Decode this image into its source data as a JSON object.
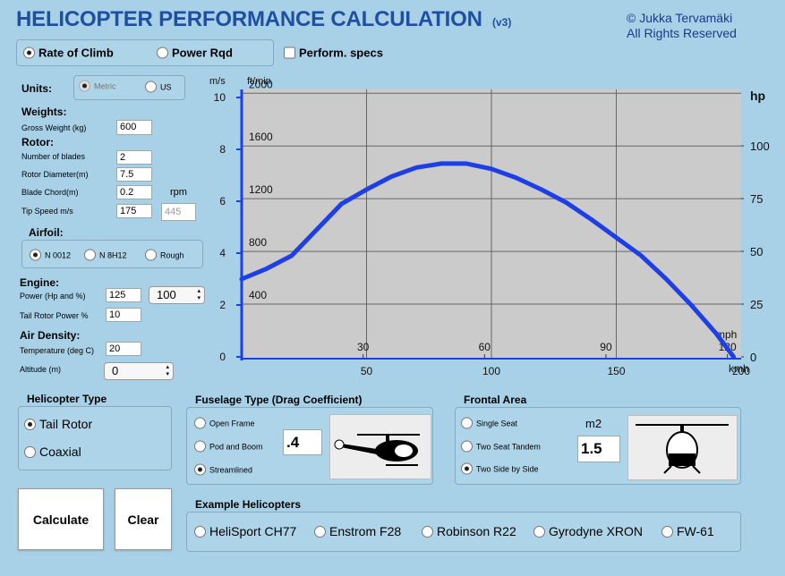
{
  "header": {
    "title": "HELICOPTER PERFORMANCE CALCULATION",
    "version": "(v3)",
    "copyright": [
      "© Jukka Tervamäki",
      "All Rights Reserved"
    ]
  },
  "mode": {
    "options": [
      "Rate of Climb",
      "Power Rqd"
    ],
    "selected": 0,
    "checkbox": "Perform. specs",
    "checked": false
  },
  "units": {
    "label": "Units:",
    "options": [
      "Metric",
      "US"
    ],
    "selected": 0
  },
  "weights": {
    "heading": "Weights:",
    "fields": [
      {
        "label": "Gross Weight (kg)",
        "value": "600"
      }
    ]
  },
  "rotor": {
    "heading": "Rotor:",
    "fields": [
      {
        "label": "Number of blades",
        "value": "2"
      },
      {
        "label": "Rotor Diameter(m)",
        "value": "7.5"
      },
      {
        "label": "Blade Chord(m)",
        "value": "0.2"
      },
      {
        "label": "Tip Speed m/s",
        "value": "175"
      }
    ],
    "rpm_label": "rpm",
    "rpm": "445"
  },
  "airfoil": {
    "heading": "Airfoil:",
    "options": [
      "N 0012",
      "N 8H12",
      "Rough"
    ],
    "selected": 0
  },
  "engine": {
    "heading": "Engine:",
    "fields": [
      {
        "label": "Power (Hp and %)",
        "value": "125"
      },
      {
        "label": "Tail Rotor Power %",
        "value": "10"
      }
    ],
    "percent": "100"
  },
  "air_density": {
    "heading": "Air Density:",
    "fields": [
      {
        "label": "Temperature  (deg  C)",
        "value": "20"
      },
      {
        "label": "Altitude  (m)",
        "value": "0"
      }
    ]
  },
  "helicopter_type": {
    "heading": "Helicopter Type",
    "options": [
      "Tail Rotor",
      "Coaxial"
    ],
    "selected": 0
  },
  "fuselage": {
    "heading": "Fuselage Type (Drag Coefficient)",
    "options": [
      "Open Frame",
      "Pod and Boom",
      "Streamlined"
    ],
    "selected": 2,
    "value": ".4"
  },
  "frontal_area": {
    "heading": "Frontal Area",
    "options": [
      "Single Seat",
      "Two Seat Tandem",
      "Two Side by Side"
    ],
    "selected": 2,
    "unit": "m2",
    "value": "1.5"
  },
  "buttons": [
    "Calculate",
    "Clear"
  ],
  "examples": {
    "heading": "Example Helicopters",
    "options": [
      "HeliSport CH77",
      "Enstrom F28",
      "Robinson R22",
      "Gyrodyne XRON",
      "FW-61"
    ]
  },
  "chart_data": {
    "type": "line",
    "ylabel": "m/s",
    "y2label": "ft/min",
    "y3label": "hp",
    "xlabel": "kmh",
    "x2label": "mph",
    "x": [
      0,
      10,
      20,
      30,
      40,
      50,
      60,
      70,
      80,
      90,
      100,
      110,
      120,
      130,
      140,
      150,
      160,
      170,
      180,
      190,
      197
    ],
    "values": [
      3.0,
      3.4,
      3.9,
      4.9,
      5.9,
      6.45,
      6.95,
      7.3,
      7.45,
      7.45,
      7.25,
      6.9,
      6.45,
      5.95,
      5.3,
      4.6,
      3.9,
      3.0,
      2.0,
      0.9,
      0
    ],
    "color": "#1f3fe6",
    "xlim": [
      0,
      200
    ],
    "xticks": [
      50,
      100,
      150,
      200
    ],
    "x2lim": [
      0,
      123.4
    ],
    "x2ticks": [
      30,
      60,
      90,
      120
    ],
    "ylim": [
      0,
      10
    ],
    "yticks": [
      0,
      2,
      4,
      6,
      8,
      10
    ],
    "y2lim": [
      0,
      1968
    ],
    "y2ticks": [
      400,
      800,
      1200,
      1600,
      2000
    ],
    "y3lim": [
      0,
      122.9
    ],
    "y3ticks": [
      0,
      25,
      50,
      75,
      100
    ],
    "grid": true
  }
}
